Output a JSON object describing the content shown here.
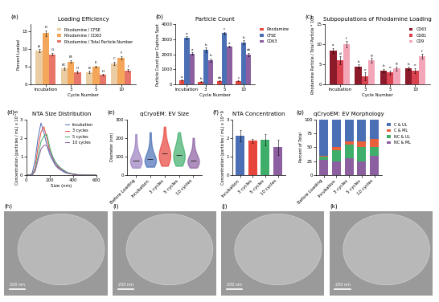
{
  "chart_data": [
    {
      "type": "grouped_bar",
      "label": "(a)",
      "title": "Loading Efficiency",
      "x_label": "Cycle Number",
      "y_label": "Percent Loaded",
      "categories": [
        "Incubation",
        "3",
        "5",
        "10"
      ],
      "ylim": [
        0,
        17
      ],
      "yticks": [
        0,
        5,
        10,
        15
      ],
      "legend": "upper right",
      "series": [
        {
          "name": "Rhodamine / CFSE",
          "color": "#eacda3",
          "values": [
            9.5,
            4.5,
            3.5,
            6.0
          ],
          "errors": [
            0.5,
            0.3,
            0.3,
            0.4
          ],
          "letters": [
            "A",
            "BC",
            "B",
            "C"
          ]
        },
        {
          "name": "Rhodamine / CD63",
          "color": "#f4a65a",
          "values": [
            14.5,
            6.5,
            5.0,
            7.5
          ],
          "errors": [
            0.8,
            0.4,
            0.3,
            0.5
          ],
          "letters": [
            "D",
            "EF",
            "E",
            "F"
          ]
        },
        {
          "name": "Rhodamine / Total Particle Number",
          "color": "#e8756a",
          "values": [
            8.5,
            3.5,
            2.7,
            4.0
          ],
          "errors": [
            0.4,
            0.3,
            0.2,
            0.3
          ],
          "letters": [
            "G",
            "HI",
            "H",
            "I"
          ]
        }
      ]
    },
    {
      "type": "grouped_bar",
      "label": "(b)",
      "title": "Particle Count",
      "x_label": "Cycle Number",
      "y_label": "Particle Count per Capture Spot",
      "categories": [
        "Incubation",
        "3",
        "5",
        "10"
      ],
      "ylim": [
        0,
        4000
      ],
      "yticks": [
        0,
        1000,
        2000,
        3000,
        4000
      ],
      "legend": "right",
      "series": [
        {
          "name": "Rhodamine",
          "color": "#e8453c",
          "values": [
            300,
            200,
            250,
            250
          ],
          "errors": [
            30,
            20,
            20,
            20
          ],
          "letters": [
            "a",
            "b",
            "ab",
            "c"
          ]
        },
        {
          "name": "CFSE",
          "color": "#4a6fb5",
          "values": [
            3100,
            2300,
            3400,
            2800
          ],
          "errors": [
            100,
            150,
            80,
            120
          ],
          "letters": [
            "a",
            "b",
            "c",
            "b"
          ]
        },
        {
          "name": "CD63",
          "color": "#8b5fa0",
          "values": [
            2050,
            1600,
            2500,
            2000
          ],
          "errors": [
            80,
            120,
            60,
            100
          ],
          "letters": [
            "a",
            "b",
            "a",
            "ab"
          ]
        }
      ]
    },
    {
      "type": "grouped_bar",
      "label": "(c)",
      "title": "Subpopulations of Rhodamine Loading",
      "x_label": "Cycle Number",
      "y_label": "Rhodamine Particle / Total Particle * 100",
      "categories": [
        "Incubation",
        "3",
        "5",
        "10"
      ],
      "ylim": [
        0,
        15
      ],
      "yticks": [
        0,
        5,
        10,
        15
      ],
      "legend": "upper right",
      "series": [
        {
          "name": "CD63",
          "color": "#8b1a2b",
          "values": [
            8.5,
            4.5,
            3.5,
            4.0
          ],
          "errors": [
            0.6,
            0.5,
            0.4,
            0.4
          ],
          "letters": [
            "a",
            "b",
            "b",
            "b"
          ]
        },
        {
          "name": "CD81",
          "color": "#d9434f",
          "values": [
            6.0,
            2.0,
            3.0,
            3.5
          ],
          "errors": [
            1.0,
            1.0,
            0.5,
            0.6
          ],
          "letters": [
            "d",
            "e",
            "e",
            "e"
          ]
        },
        {
          "name": "CD9",
          "color": "#f2a6b8",
          "values": [
            10.0,
            6.0,
            4.0,
            7.0
          ],
          "errors": [
            0.8,
            0.6,
            0.5,
            0.6
          ],
          "letters": [
            "f",
            "g",
            "g",
            "f"
          ]
        }
      ]
    },
    {
      "type": "line",
      "label": "(d)",
      "title": "NTA Size Distribution",
      "x_label": "Size (nm)",
      "y_label": "Concentration (particles / mL) x 10^8",
      "x": [
        0,
        25,
        50,
        75,
        100,
        125,
        150,
        175,
        200,
        225,
        250,
        275,
        300,
        325,
        350,
        375,
        400,
        425,
        450,
        475,
        500,
        525,
        550,
        575,
        600
      ],
      "xlim": [
        0,
        600
      ],
      "xticks": [
        0,
        200,
        400,
        600
      ],
      "ylim": [
        0,
        3
      ],
      "yticks": [
        0,
        1,
        2,
        3
      ],
      "legend": "upper right",
      "series": [
        {
          "name": "Incubation",
          "color": "#4a6fb5",
          "values": [
            0,
            0,
            0.1,
            0.8,
            2.0,
            2.8,
            2.3,
            1.6,
            1.1,
            0.8,
            0.5,
            0.35,
            0.25,
            0.15,
            0.1,
            0.08,
            0.05,
            0.03,
            0.02,
            0.01,
            0,
            0,
            0,
            0,
            0
          ]
        },
        {
          "name": "3 cycles",
          "color": "#e8453c",
          "values": [
            0,
            0,
            0,
            0.4,
            1.5,
            2.3,
            2.6,
            2.0,
            1.3,
            0.9,
            0.6,
            0.4,
            0.3,
            0.2,
            0.12,
            0.08,
            0.05,
            0.03,
            0.02,
            0.01,
            0,
            0,
            0,
            0,
            0
          ]
        },
        {
          "name": "5 cycles",
          "color": "#3fae6a",
          "values": [
            0,
            0,
            0,
            0.3,
            1.0,
            1.8,
            2.1,
            2.2,
            1.5,
            1.0,
            0.7,
            0.5,
            0.35,
            0.25,
            0.15,
            0.1,
            0.07,
            0.04,
            0.02,
            0.01,
            0,
            0,
            0,
            0,
            0
          ]
        },
        {
          "name": "10 cycles",
          "color": "#8b5fa0",
          "values": [
            0,
            0,
            0,
            0.2,
            0.8,
            1.4,
            1.6,
            1.6,
            1.3,
            0.9,
            0.6,
            0.45,
            0.3,
            0.2,
            0.12,
            0.08,
            0.05,
            0.03,
            0.02,
            0.01,
            0,
            0,
            0,
            0,
            0
          ]
        }
      ]
    },
    {
      "type": "violin",
      "label": "(e)",
      "title": "qCryoEM: EV Size",
      "y_label": "Diameter (nm)",
      "categories": [
        "Before Loading",
        "Incubation",
        "3 cycles",
        "5 cycles",
        "10 cycles"
      ],
      "colors": [
        "#9b7fc0",
        "#4a6fb5",
        "#e8453c",
        "#3fae6a",
        "#8b5fa0"
      ],
      "ylim": [
        0,
        300
      ],
      "yticks": [
        0,
        100,
        200,
        300
      ],
      "distributions": [
        [
          40,
          50,
          55,
          60,
          65,
          70,
          75,
          80,
          85,
          90,
          100,
          110,
          130,
          160,
          220
        ],
        [
          45,
          55,
          60,
          65,
          70,
          75,
          80,
          85,
          90,
          95,
          105,
          120,
          140,
          170,
          230
        ],
        [
          50,
          60,
          70,
          80,
          90,
          100,
          110,
          115,
          120,
          130,
          140,
          155,
          170,
          200,
          260
        ],
        [
          50,
          60,
          70,
          80,
          85,
          95,
          105,
          110,
          120,
          130,
          140,
          150,
          170,
          190,
          230
        ],
        [
          40,
          50,
          55,
          60,
          65,
          70,
          75,
          80,
          85,
          90,
          100,
          110,
          125,
          150,
          200
        ]
      ]
    },
    {
      "type": "bar",
      "label": "(f)",
      "title": "NTA Concentration",
      "y_label": "Concentration (particles / mL) x 10^9",
      "categories": [
        "Incubation",
        "3 cycles",
        "5 cycles",
        "10 cycles"
      ],
      "values": [
        2.1,
        1.85,
        1.9,
        1.5
      ],
      "errors": [
        0.3,
        0.1,
        0.3,
        0.4
      ],
      "colors": [
        "#4a6fb5",
        "#e8453c",
        "#3fae6a",
        "#8b5fa0"
      ],
      "ylim": [
        0,
        3
      ],
      "yticks": [
        0,
        1,
        2,
        3
      ]
    },
    {
      "type": "stacked_bar",
      "stacked": true,
      "label": "(g)",
      "title": "qCryoEM: EV Morphology",
      "y_label": "Percent of Total",
      "categories": [
        "Before Loading",
        "Incubation",
        "3 cycles",
        "5 cycles",
        "10 cycles"
      ],
      "ylim": [
        0,
        100
      ],
      "yticks": [
        0,
        25,
        50,
        75,
        100
      ],
      "legend": "right",
      "series": [
        {
          "name": "C & UL",
          "color": "#4a6fb5",
          "values": [
            65,
            50,
            40,
            40,
            35
          ]
        },
        {
          "name": "C & ML",
          "color": "#e8603c",
          "values": [
            2,
            5,
            5,
            10,
            15
          ]
        },
        {
          "name": "NC & UL",
          "color": "#3fae6a",
          "values": [
            5,
            20,
            25,
            25,
            15
          ]
        },
        {
          "name": "NC & ML",
          "color": "#8b5fa0",
          "values": [
            28,
            25,
            30,
            25,
            35
          ]
        }
      ]
    },
    {
      "type": "image",
      "label": "(h)",
      "scale_label": "200 nm"
    },
    {
      "type": "image",
      "label": "(i)",
      "scale_label": "200 nm"
    },
    {
      "type": "image",
      "label": "(j)",
      "scale_label": "200 nm"
    },
    {
      "type": "image",
      "label": "(k)",
      "scale_label": "200 nm"
    }
  ]
}
